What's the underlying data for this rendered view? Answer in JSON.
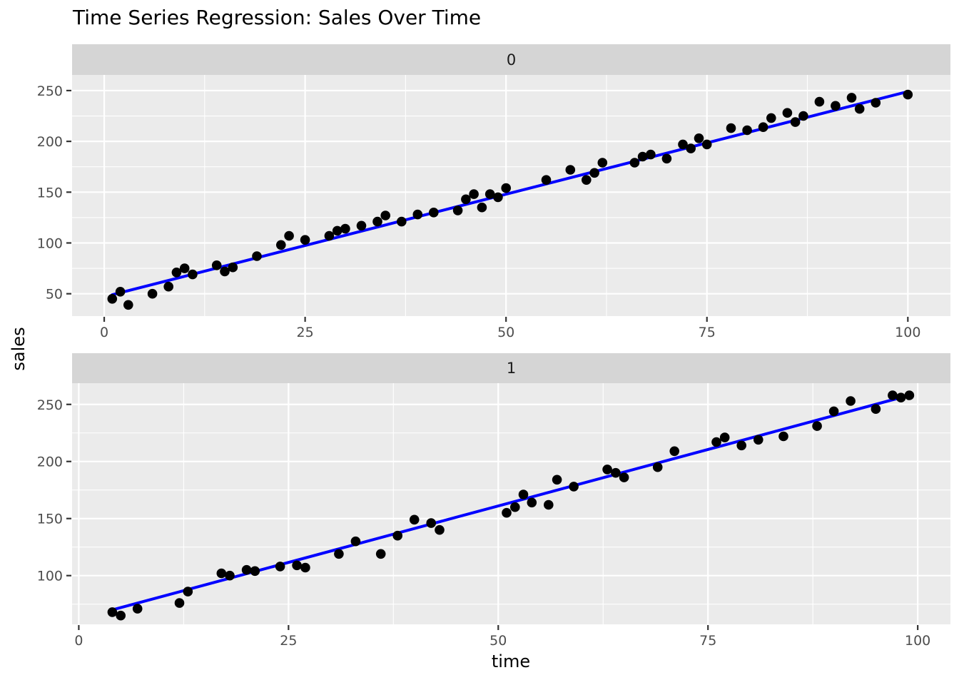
{
  "title": "Time Series Regression: Sales Over Time",
  "axes": {
    "x_title": "time",
    "y_title": "sales"
  },
  "colors": {
    "background": "#ffffff",
    "panel_bg": "#ebebeb",
    "strip_bg": "#d5d5d5",
    "grid": "#ffffff",
    "point": "#000000",
    "line": "#0000ff",
    "tick_mark": "#333333",
    "tick_label": "#4d4d4d",
    "title_color": "#000000"
  },
  "chart_data": [
    {
      "type": "scatter",
      "facet": "0",
      "xlabel": "time",
      "ylabel": "sales",
      "grid": true,
      "legend": "none",
      "x_ticks": [
        0,
        25,
        50,
        75,
        100
      ],
      "y_ticks": [
        50,
        100,
        150,
        200,
        250
      ],
      "x_range": [
        -4.0,
        105.3
      ],
      "y_range": [
        28.0,
        265.4
      ],
      "regression_line": {
        "x1": 1,
        "y1": 49,
        "x2": 100,
        "y2": 249
      },
      "points": [
        [
          1,
          45
        ],
        [
          2,
          52
        ],
        [
          3,
          39
        ],
        [
          6,
          50
        ],
        [
          8,
          57
        ],
        [
          9,
          71
        ],
        [
          10,
          75
        ],
        [
          11,
          69
        ],
        [
          14,
          78
        ],
        [
          15,
          72
        ],
        [
          16,
          76
        ],
        [
          19,
          87
        ],
        [
          22,
          98
        ],
        [
          23,
          107
        ],
        [
          25,
          103
        ],
        [
          28,
          107
        ],
        [
          29,
          112
        ],
        [
          30,
          114
        ],
        [
          32,
          117
        ],
        [
          34,
          121
        ],
        [
          35,
          127
        ],
        [
          37,
          121
        ],
        [
          39,
          128
        ],
        [
          41,
          130
        ],
        [
          44,
          132
        ],
        [
          45,
          143
        ],
        [
          46,
          148
        ],
        [
          47,
          135
        ],
        [
          48,
          148
        ],
        [
          49,
          145
        ],
        [
          50,
          154
        ],
        [
          55,
          162
        ],
        [
          58,
          172
        ],
        [
          60,
          162
        ],
        [
          61,
          169
        ],
        [
          62,
          179
        ],
        [
          66,
          179
        ],
        [
          67,
          185
        ],
        [
          68,
          187
        ],
        [
          70,
          183
        ],
        [
          72,
          197
        ],
        [
          73,
          193
        ],
        [
          74,
          203
        ],
        [
          75,
          197
        ],
        [
          78,
          213
        ],
        [
          80,
          211
        ],
        [
          82,
          214
        ],
        [
          83,
          223
        ],
        [
          85,
          228
        ],
        [
          86,
          219
        ],
        [
          87,
          225
        ],
        [
          89,
          239
        ],
        [
          91,
          235
        ],
        [
          93,
          243
        ],
        [
          94,
          232
        ],
        [
          96,
          238
        ],
        [
          100,
          246
        ]
      ]
    },
    {
      "type": "scatter",
      "facet": "1",
      "xlabel": "time",
      "ylabel": "sales",
      "grid": true,
      "legend": "none",
      "x_ticks": [
        0,
        25,
        50,
        75,
        100
      ],
      "y_ticks": [
        100,
        150,
        200,
        250
      ],
      "x_range": [
        -0.8,
        103.9
      ],
      "y_range": [
        57.3,
        268.6
      ],
      "regression_line": {
        "x1": 4,
        "y1": 70,
        "x2": 99,
        "y2": 258
      },
      "points": [
        [
          4,
          68
        ],
        [
          5,
          65
        ],
        [
          7,
          71
        ],
        [
          12,
          76
        ],
        [
          13,
          86
        ],
        [
          17,
          102
        ],
        [
          18,
          100
        ],
        [
          20,
          105
        ],
        [
          21,
          104
        ],
        [
          24,
          108
        ],
        [
          26,
          109
        ],
        [
          27,
          107
        ],
        [
          31,
          119
        ],
        [
          33,
          130
        ],
        [
          36,
          119
        ],
        [
          38,
          135
        ],
        [
          40,
          149
        ],
        [
          42,
          146
        ],
        [
          43,
          140
        ],
        [
          51,
          155
        ],
        [
          52,
          160
        ],
        [
          53,
          171
        ],
        [
          54,
          164
        ],
        [
          56,
          162
        ],
        [
          57,
          184
        ],
        [
          59,
          178
        ],
        [
          63,
          193
        ],
        [
          64,
          190
        ],
        [
          65,
          186
        ],
        [
          69,
          195
        ],
        [
          71,
          209
        ],
        [
          76,
          217
        ],
        [
          77,
          221
        ],
        [
          79,
          214
        ],
        [
          81,
          219
        ],
        [
          84,
          222
        ],
        [
          88,
          231
        ],
        [
          90,
          244
        ],
        [
          92,
          253
        ],
        [
          95,
          246
        ],
        [
          97,
          258
        ],
        [
          98,
          256
        ],
        [
          99,
          258
        ]
      ]
    }
  ]
}
